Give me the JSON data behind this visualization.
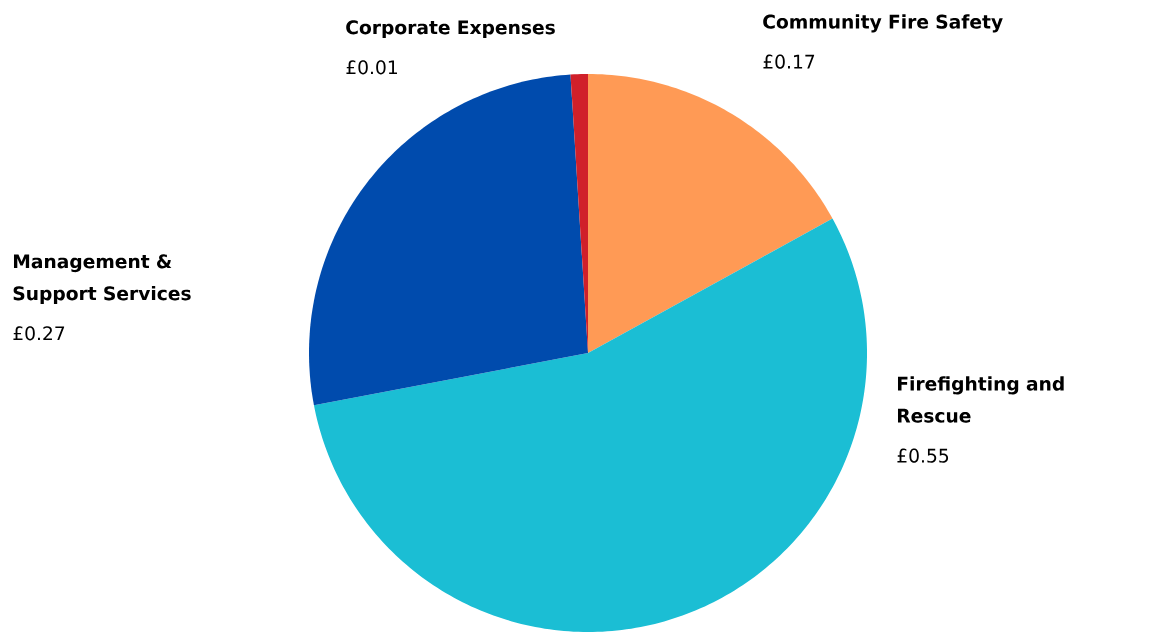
{
  "chart_data": {
    "type": "pie",
    "categories": [
      "Community Fire Safety",
      "Firefighting and Rescue",
      "Management & Support Services",
      "Corporate Expenses"
    ],
    "values": [
      0.17,
      0.55,
      0.27,
      0.01
    ],
    "colors": [
      "#ff9a55",
      "#1bbed4",
      "#004bad",
      "#d0202a"
    ],
    "value_labels": [
      "£0.17",
      "£0.55",
      "£0.27",
      "£0.01"
    ]
  }
}
